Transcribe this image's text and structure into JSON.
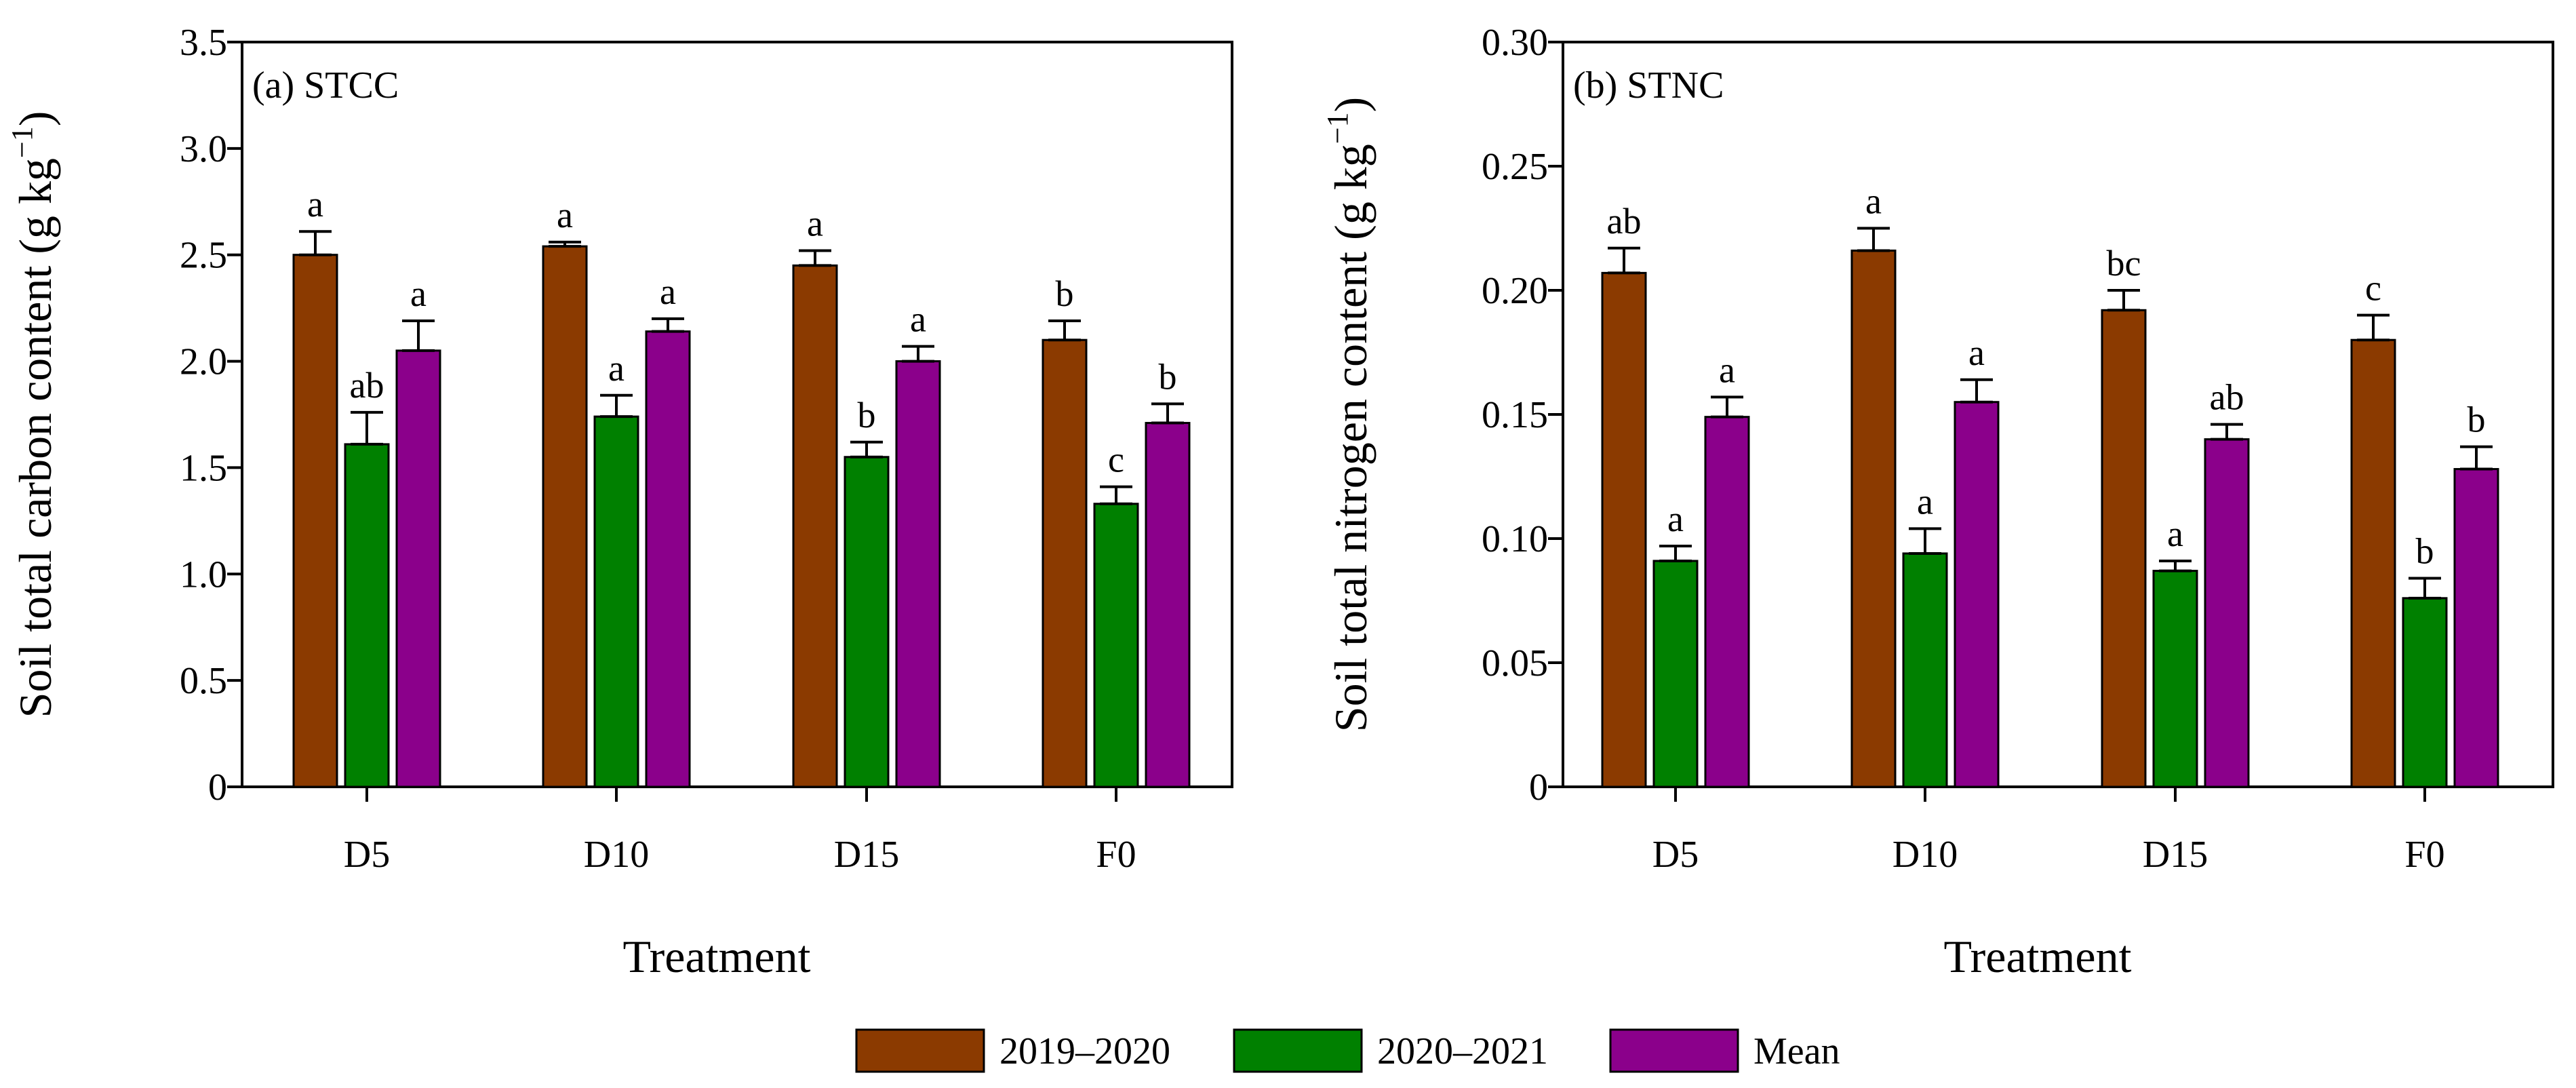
{
  "chart_data": [
    {
      "type": "bar",
      "panel_label": "(a) STCC",
      "xlabel": "Treatment",
      "ylabel": "Soil total carbon content",
      "yunit": "(g kg",
      "yunit_exp": "−1",
      "yunit_close": ")",
      "ylim": [
        0,
        3.5
      ],
      "yticks": [
        0,
        0.5,
        1.0,
        1.5,
        2.0,
        2.5,
        3.0,
        3.5
      ],
      "ytick_labels": [
        "0",
        "0.5",
        "1.0",
        "1.5",
        "2.0",
        "2.5",
        "3.0",
        "3.5"
      ],
      "categories": [
        "D5",
        "D10",
        "D15",
        "F0"
      ],
      "series": [
        {
          "name": "2019–2020",
          "values": [
            2.5,
            2.54,
            2.45,
            2.1
          ],
          "errors": [
            0.11,
            0.02,
            0.07,
            0.09
          ],
          "letters": [
            "a",
            "a",
            "a",
            "b"
          ]
        },
        {
          "name": "2020–2021",
          "values": [
            1.61,
            1.74,
            1.55,
            1.33
          ],
          "errors": [
            0.15,
            0.1,
            0.07,
            0.08
          ],
          "letters": [
            "ab",
            "a",
            "b",
            "c"
          ]
        },
        {
          "name": "Mean",
          "values": [
            2.05,
            2.14,
            2.0,
            1.71
          ],
          "errors": [
            0.14,
            0.06,
            0.07,
            0.09
          ],
          "letters": [
            "a",
            "a",
            "a",
            "b"
          ]
        }
      ]
    },
    {
      "type": "bar",
      "panel_label": "(b) STNC",
      "xlabel": "Treatment",
      "ylabel": "Soil total nitrogen content",
      "yunit": "(g kg",
      "yunit_exp": "−1",
      "yunit_close": ")",
      "ylim": [
        0,
        0.3
      ],
      "yticks": [
        0,
        0.05,
        0.1,
        0.15,
        0.2,
        0.25,
        0.3
      ],
      "ytick_labels": [
        "0",
        "0.05",
        "0.10",
        "0.15",
        "0.20",
        "0.25",
        "0.30"
      ],
      "categories": [
        "D5",
        "D10",
        "D15",
        "F0"
      ],
      "series": [
        {
          "name": "2019–2020",
          "values": [
            0.207,
            0.216,
            0.192,
            0.18
          ],
          "errors": [
            0.01,
            0.009,
            0.008,
            0.01
          ],
          "letters": [
            "ab",
            "a",
            "bc",
            "c"
          ]
        },
        {
          "name": "2020–2021",
          "values": [
            0.091,
            0.094,
            0.087,
            0.076
          ],
          "errors": [
            0.006,
            0.01,
            0.004,
            0.008
          ],
          "letters": [
            "a",
            "a",
            "a",
            "b"
          ]
        },
        {
          "name": "Mean",
          "values": [
            0.149,
            0.155,
            0.14,
            0.128
          ],
          "errors": [
            0.008,
            0.009,
            0.006,
            0.009
          ],
          "letters": [
            "a",
            "a",
            "ab",
            "b"
          ]
        }
      ]
    }
  ],
  "legend": {
    "items": [
      {
        "label": "2019–2020",
        "color": "#8b3a00"
      },
      {
        "label": "2020–2021",
        "color": "#008000"
      },
      {
        "label": "Mean",
        "color": "#8b008b"
      }
    ]
  }
}
